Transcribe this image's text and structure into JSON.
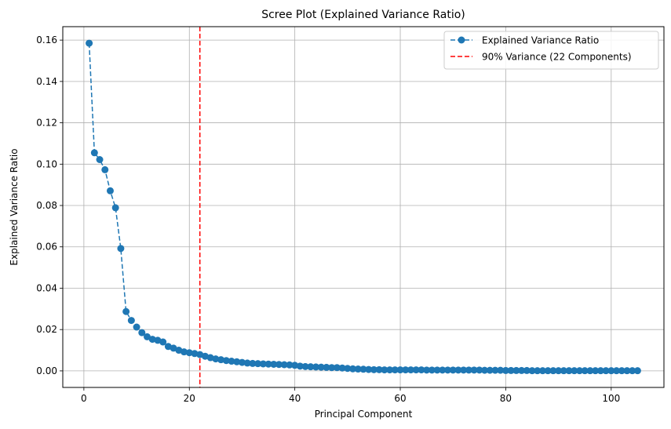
{
  "chart_data": {
    "type": "line",
    "title": "Scree Plot (Explained Variance Ratio)",
    "xlabel": "Principal Component",
    "ylabel": "Explained Variance Ratio",
    "xlim": [
      -4,
      110
    ],
    "ylim": [
      -0.008,
      0.1665
    ],
    "xticks": [
      0,
      20,
      40,
      60,
      80,
      100
    ],
    "yticks": [
      0.0,
      0.02,
      0.04,
      0.06,
      0.08,
      0.1,
      0.12,
      0.14,
      0.16
    ],
    "xtick_labels": [
      "0",
      "20",
      "40",
      "60",
      "80",
      "100"
    ],
    "ytick_labels": [
      "0.00",
      "0.02",
      "0.04",
      "0.06",
      "0.08",
      "0.10",
      "0.12",
      "0.14",
      "0.16"
    ],
    "grid": true,
    "legend_position": "top-right",
    "series": [
      {
        "name": "Explained Variance Ratio",
        "color": "#1f77b4",
        "line_style": "dashed",
        "marker": "circle",
        "x": [
          1,
          2,
          3,
          4,
          5,
          6,
          7,
          8,
          9,
          10,
          11,
          12,
          13,
          14,
          15,
          16,
          17,
          18,
          19,
          20,
          21,
          22,
          23,
          24,
          25,
          26,
          27,
          28,
          29,
          30,
          31,
          32,
          33,
          34,
          35,
          36,
          37,
          38,
          39,
          40,
          41,
          42,
          43,
          44,
          45,
          46,
          47,
          48,
          49,
          50,
          51,
          52,
          53,
          54,
          55,
          56,
          57,
          58,
          59,
          60,
          61,
          62,
          63,
          64,
          65,
          66,
          67,
          68,
          69,
          70,
          71,
          72,
          73,
          74,
          75,
          76,
          77,
          78,
          79,
          80,
          81,
          82,
          83,
          84,
          85,
          86,
          87,
          88,
          89,
          90,
          91,
          92,
          93,
          94,
          95,
          96,
          97,
          98,
          99,
          100,
          101,
          102,
          103,
          104,
          105
        ],
        "values": [
          0.1585,
          0.1055,
          0.1022,
          0.0973,
          0.0871,
          0.0789,
          0.0592,
          0.0287,
          0.0244,
          0.0212,
          0.0185,
          0.0165,
          0.0153,
          0.0148,
          0.014,
          0.0118,
          0.011,
          0.01,
          0.0092,
          0.0088,
          0.0084,
          0.0079,
          0.0071,
          0.0064,
          0.0058,
          0.0054,
          0.005,
          0.0047,
          0.0044,
          0.0041,
          0.0038,
          0.0036,
          0.0035,
          0.0034,
          0.0033,
          0.0032,
          0.0031,
          0.003,
          0.0029,
          0.0027,
          0.0023,
          0.0021,
          0.002,
          0.0019,
          0.0018,
          0.0017,
          0.0016,
          0.0016,
          0.0014,
          0.0012,
          0.001,
          0.0009,
          0.0008,
          0.0007,
          0.0006,
          0.0006,
          0.0005,
          0.0005,
          0.0005,
          0.0005,
          0.0005,
          0.0005,
          0.0005,
          0.0005,
          0.0004,
          0.0004,
          0.0004,
          0.0004,
          0.0004,
          0.0004,
          0.0004,
          0.0004,
          0.0004,
          0.0004,
          0.0004,
          0.0003,
          0.0003,
          0.0003,
          0.0003,
          0.0002,
          0.0002,
          0.0002,
          0.0002,
          0.0002,
          0.0001,
          0.0001,
          0.0001,
          0.0001,
          0.0001,
          0.0001,
          0.0001,
          0.0001,
          0.0001,
          0.0001,
          0.0001,
          0.0001,
          0.0001,
          0.0001,
          0.0001,
          0.0001,
          0.0001,
          0.0001,
          0.0001,
          0.0001,
          0.0001
        ]
      }
    ],
    "threshold_line": {
      "name": "90% Variance (22 Components)",
      "x": 22,
      "color": "#ff0000",
      "line_style": "dashed"
    }
  }
}
